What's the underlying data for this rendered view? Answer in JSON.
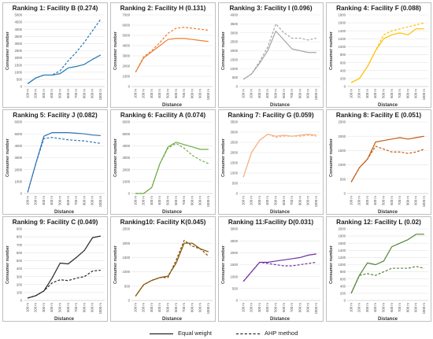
{
  "chart_data": [
    {
      "type": "line",
      "title": "Ranking 1: Facility B (0.274)",
      "xlabel": "",
      "ylabel": "Consumer number",
      "categories": [
        "100 m",
        "200 m",
        "300 m",
        "400 m",
        "500 m",
        "600 m",
        "700 m",
        "800 m",
        "900 m",
        "1000 m"
      ],
      "ylim": [
        0,
        5000
      ],
      "yticks": [
        0,
        500,
        1000,
        1500,
        2000,
        2500,
        3000,
        3500,
        4000,
        4500,
        5000
      ],
      "color": "#1f77b4",
      "series": [
        {
          "name": "Equal weight",
          "values": [
            200,
            600,
            800,
            800,
            900,
            1300,
            1400,
            1550,
            1900,
            2200
          ]
        },
        {
          "name": "AHP method",
          "values": [
            200,
            600,
            800,
            800,
            1100,
            1800,
            2400,
            3100,
            3900,
            4700
          ]
        }
      ]
    },
    {
      "type": "line",
      "title": "Ranking 2: Facility H (0.131)",
      "xlabel": "Distance",
      "ylabel": "Consumer number",
      "categories": [
        "100 m",
        "200 m",
        "300 m",
        "400 m",
        "500 m",
        "600 m",
        "700 m",
        "800 m",
        "900 m",
        "1000 m"
      ],
      "ylim": [
        0,
        7000
      ],
      "yticks": [
        0,
        1000,
        2000,
        3000,
        4000,
        5000,
        6000,
        7000
      ],
      "color": "#ed7d31",
      "series": [
        {
          "name": "Equal weight",
          "values": [
            1400,
            2800,
            3400,
            4000,
            4600,
            4700,
            4700,
            4600,
            4500,
            4400
          ]
        },
        {
          "name": "AHP method",
          "values": [
            1400,
            2900,
            3500,
            4300,
            5200,
            5700,
            5800,
            5700,
            5600,
            5500
          ]
        }
      ]
    },
    {
      "type": "line",
      "title": "Ranking 3: Facility I (0.096)",
      "xlabel": "Distance",
      "ylabel": "Consumer number",
      "categories": [
        "100 m",
        "200 m",
        "300 m",
        "400 m",
        "500 m",
        "600 m",
        "700 m",
        "800 m",
        "900 m",
        "1000 m"
      ],
      "ylim": [
        0,
        4000
      ],
      "yticks": [
        0,
        500,
        1000,
        1500,
        2000,
        2500,
        3000,
        3500,
        4000
      ],
      "color": "#a5a5a5",
      "series": [
        {
          "name": "Equal weight",
          "values": [
            400,
            700,
            1300,
            2000,
            3100,
            2600,
            2100,
            2000,
            1900,
            1900
          ]
        },
        {
          "name": "AHP method",
          "values": [
            400,
            700,
            1400,
            2200,
            3500,
            3000,
            2700,
            2700,
            2600,
            2700
          ]
        }
      ]
    },
    {
      "type": "line",
      "title": "Ranking 4: Facility F (0.088)",
      "xlabel": "Distance",
      "ylabel": "Consumer number",
      "categories": [
        "100 m",
        "200 m",
        "300 m",
        "400 m",
        "500 m",
        "600 m",
        "700 m",
        "800 m",
        "900 m",
        "1000 m"
      ],
      "ylim": [
        0,
        1800
      ],
      "yticks": [
        0,
        200,
        400,
        600,
        800,
        1000,
        1200,
        1400,
        1600,
        1800
      ],
      "color": "#ffc000",
      "series": [
        {
          "name": "Equal weight",
          "values": [
            100,
            200,
            500,
            900,
            1200,
            1300,
            1350,
            1300,
            1450,
            1450
          ]
        },
        {
          "name": "AHP method",
          "values": [
            100,
            200,
            500,
            900,
            1300,
            1400,
            1450,
            1500,
            1550,
            1600
          ]
        }
      ]
    },
    {
      "type": "line",
      "title": "Ranking 5: Facility J (0.082)",
      "xlabel": "Distance",
      "ylabel": "Consumer number",
      "categories": [
        "100 m",
        "200 m",
        "300 m",
        "400 m",
        "500 m",
        "600 m",
        "700 m",
        "800 m",
        "900 m",
        "1000 m"
      ],
      "ylim": [
        0,
        6000
      ],
      "yticks": [
        0,
        1000,
        2000,
        3000,
        4000,
        5000,
        6000
      ],
      "color": "#2e75b6",
      "series": [
        {
          "name": "Equal weight",
          "values": [
            100,
            2500,
            4800,
            5100,
            5100,
            5100,
            5050,
            5000,
            4900,
            4850
          ]
        },
        {
          "name": "AHP method",
          "values": [
            100,
            2500,
            4600,
            4700,
            4600,
            4500,
            4450,
            4400,
            4300,
            4200
          ]
        }
      ]
    },
    {
      "type": "line",
      "title": "Ranking 6: Facility A (0.074)",
      "xlabel": "Distance",
      "ylabel": "Consumer number",
      "categories": [
        "100 m",
        "200 m",
        "300 m",
        "400 m",
        "500 m",
        "600 m",
        "700 m",
        "800 m",
        "900 m",
        "1000 m"
      ],
      "ylim": [
        0,
        6000
      ],
      "yticks": [
        0,
        1000,
        2000,
        3000,
        4000,
        5000,
        6000
      ],
      "color": "#70ad47",
      "series": [
        {
          "name": "Equal weight",
          "values": [
            0,
            0,
            500,
            2500,
            3900,
            4300,
            4100,
            3900,
            3700,
            3700
          ]
        },
        {
          "name": "AHP method",
          "values": [
            0,
            0,
            500,
            2500,
            3800,
            4200,
            3800,
            3200,
            2800,
            2500
          ]
        }
      ]
    },
    {
      "type": "line",
      "title": "Ranking 7: Facility G (0.059)",
      "xlabel": "Distance",
      "ylabel": "Consumer number",
      "categories": [
        "100 m",
        "200 m",
        "300 m",
        "400 m",
        "500 m",
        "600 m",
        "700 m",
        "800 m",
        "900 m",
        "1000 m"
      ],
      "ylim": [
        0,
        3500
      ],
      "yticks": [
        0,
        500,
        1000,
        1500,
        2000,
        2500,
        3000,
        3500
      ],
      "color": "#f4b183",
      "series": [
        {
          "name": "Equal weight",
          "values": [
            800,
            2000,
            2600,
            2900,
            2800,
            2850,
            2800,
            2850,
            2900,
            2850
          ]
        },
        {
          "name": "AHP method",
          "values": [
            800,
            2000,
            2600,
            2900,
            2750,
            2800,
            2800,
            2800,
            2850,
            2800
          ]
        }
      ]
    },
    {
      "type": "line",
      "title": "Ranking 8: Facility E (0.051)",
      "xlabel": "Distance",
      "ylabel": "Consumer number",
      "categories": [
        "100 m",
        "200 m",
        "300 m",
        "400 m",
        "500 m",
        "600 m",
        "700 m",
        "800 m",
        "900 m",
        "1000 m"
      ],
      "ylim": [
        0,
        2500
      ],
      "yticks": [
        0,
        500,
        1000,
        1500,
        2000,
        2500
      ],
      "color": "#c55a11",
      "series": [
        {
          "name": "Equal weight",
          "values": [
            400,
            900,
            1200,
            1800,
            1850,
            1900,
            1950,
            1900,
            1950,
            2000
          ]
        },
        {
          "name": "AHP method",
          "values": [
            400,
            900,
            1200,
            1650,
            1550,
            1450,
            1450,
            1400,
            1450,
            1550
          ]
        }
      ]
    },
    {
      "type": "line",
      "title": "Ranking 9: Facility C (0.049)",
      "xlabel": "Distance",
      "ylabel": "Consumer number",
      "categories": [
        "100 m",
        "200 m",
        "300 m",
        "400 m",
        "500 m",
        "600 m",
        "700 m",
        "800 m",
        "900 m",
        "1000 m"
      ],
      "ylim": [
        0,
        900
      ],
      "yticks": [
        0,
        100,
        200,
        300,
        400,
        500,
        600,
        700,
        800,
        900
      ],
      "color": "#262626",
      "series": [
        {
          "name": "Equal weight",
          "values": [
            30,
            60,
            120,
            280,
            470,
            460,
            540,
            630,
            790,
            810
          ]
        },
        {
          "name": "AHP method",
          "values": [
            30,
            60,
            120,
            220,
            260,
            250,
            280,
            300,
            370,
            380
          ]
        }
      ]
    },
    {
      "type": "line",
      "title": "Ranking10: Facility K(0.045)",
      "xlabel": "Distance",
      "ylabel": "Consumer number",
      "categories": [
        "100 m",
        "200 m",
        "300 m",
        "400 m",
        "500 m",
        "600 m",
        "700 m",
        "800 m",
        "900 m",
        "1000 m"
      ],
      "ylim": [
        0,
        2500
      ],
      "yticks": [
        0,
        500,
        1000,
        1500,
        2000,
        2500
      ],
      "color": "#7f4f00",
      "series": [
        {
          "name": "Equal weight",
          "values": [
            150,
            550,
            700,
            800,
            850,
            1300,
            2000,
            2000,
            1800,
            1700
          ]
        },
        {
          "name": "AHP method",
          "values": [
            150,
            550,
            700,
            800,
            800,
            1400,
            2100,
            1900,
            1800,
            1550
          ]
        }
      ]
    },
    {
      "type": "line",
      "title": "Ranking 11:Facility D(0.031)",
      "xlabel": "Distance",
      "ylabel": "Consumer number",
      "categories": [
        "100 m",
        "200 m",
        "300 m",
        "400 m",
        "500 m",
        "600 m",
        "700 m",
        "800 m",
        "900 m",
        "1000 m"
      ],
      "ylim": [
        0,
        3000
      ],
      "yticks": [
        0,
        500,
        1000,
        1500,
        2000,
        2500,
        3000
      ],
      "color": "#7030a0",
      "series": [
        {
          "name": "Equal weight",
          "values": [
            800,
            1200,
            1600,
            1600,
            1650,
            1700,
            1750,
            1800,
            1900,
            1950
          ]
        },
        {
          "name": "AHP method",
          "values": [
            800,
            1200,
            1600,
            1550,
            1500,
            1450,
            1450,
            1500,
            1550,
            1600
          ]
        }
      ]
    },
    {
      "type": "line",
      "title": "Ranking 12: Facility L (0.02)",
      "xlabel": "Distance",
      "ylabel": "Consumer number",
      "categories": [
        "100 m",
        "200 m",
        "300 m",
        "400 m",
        "500 m",
        "600 m",
        "700 m",
        "800 m",
        "900 m",
        "1000 m"
      ],
      "ylim": [
        0,
        2000
      ],
      "yticks": [
        0,
        200,
        400,
        600,
        800,
        1000,
        1200,
        1400,
        1600,
        1800,
        2000
      ],
      "color": "#548235",
      "series": [
        {
          "name": "Equal weight",
          "values": [
            200,
            700,
            1050,
            1000,
            1100,
            1500,
            1600,
            1700,
            1850,
            1850
          ]
        },
        {
          "name": "AHP method",
          "values": [
            200,
            700,
            750,
            700,
            800,
            900,
            900,
            900,
            950,
            900
          ]
        }
      ]
    }
  ],
  "legend": {
    "solid_label": "Equal weight",
    "dashed_label": "AHP method"
  }
}
